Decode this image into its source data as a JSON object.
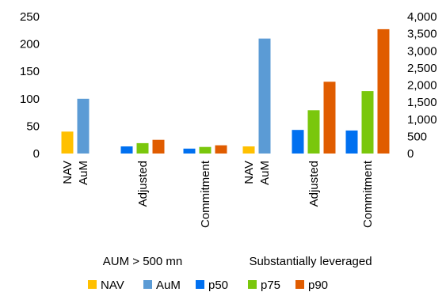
{
  "chart_data": {
    "type": "bar",
    "left_axis": {
      "range": [
        0,
        250
      ],
      "ticks": [
        "0",
        "50",
        "100",
        "150",
        "200",
        "250"
      ]
    },
    "right_axis": {
      "range": [
        0,
        4000
      ],
      "ticks": [
        "0",
        "500",
        "1,000",
        "1,500",
        "2,000",
        "2,500",
        "3,000",
        "3,500",
        "4,000"
      ]
    },
    "groups": [
      {
        "label": "AUM > 500 mn",
        "clusters": [
          {
            "labels": [
              "NAV",
              "AuM"
            ],
            "bars": [
              {
                "series": "NAV",
                "value": 40
              },
              {
                "series": "AuM",
                "value": 100
              }
            ]
          },
          {
            "labels": [
              "Adjusted"
            ],
            "bars": [
              {
                "series": "p50",
                "value": 13
              },
              {
                "series": "p75",
                "value": 19
              },
              {
                "series": "p90",
                "value": 25
              }
            ]
          },
          {
            "labels": [
              "Commitment"
            ],
            "bars": [
              {
                "series": "p50",
                "value": 9
              },
              {
                "series": "p75",
                "value": 12
              },
              {
                "series": "p90",
                "value": 15
              }
            ]
          }
        ]
      },
      {
        "label": "Substantially leveraged",
        "clusters": [
          {
            "labels": [
              "NAV",
              "AuM"
            ],
            "bars": [
              {
                "series": "NAV",
                "value": 13
              },
              {
                "series": "AuM",
                "value": 210
              }
            ]
          },
          {
            "labels": [
              "Adjusted"
            ],
            "bars": [
              {
                "series": "p50",
                "value": 43
              },
              {
                "series": "p75",
                "value": 79
              },
              {
                "series": "p90",
                "value": 131
              }
            ]
          },
          {
            "labels": [
              "Commitment"
            ],
            "bars": [
              {
                "series": "p50",
                "value": 42
              },
              {
                "series": "p75",
                "value": 114
              },
              {
                "series": "p90",
                "value": 227
              }
            ]
          }
        ]
      }
    ],
    "legend": {
      "position": "bottom",
      "items": [
        {
          "name": "NAV",
          "color": "#FFC000"
        },
        {
          "name": "AuM",
          "color": "#5B9BD5"
        },
        {
          "name": "p50",
          "color": "#0070F0"
        },
        {
          "name": "p75",
          "color": "#7AC70C"
        },
        {
          "name": "p90",
          "color": "#E05C00"
        }
      ]
    },
    "grid": false
  }
}
